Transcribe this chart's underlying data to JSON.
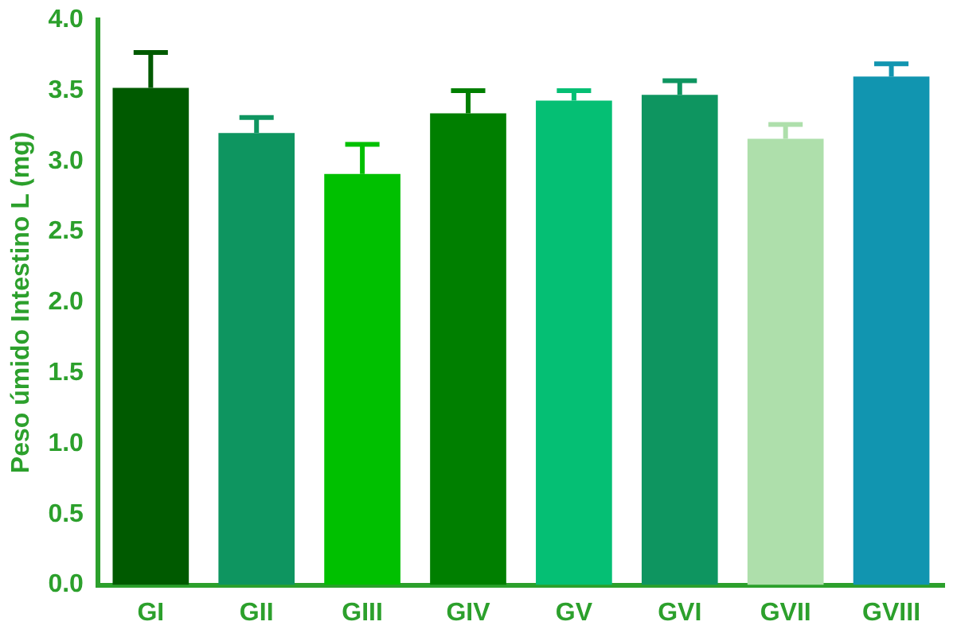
{
  "chart_data": {
    "type": "bar",
    "ylabel": "Peso úmido Intestino L (mg)",
    "categories": [
      "GI",
      "GII",
      "GIII",
      "GIV",
      "GV",
      "GVI",
      "GVII",
      "GVIII"
    ],
    "values": [
      3.52,
      3.2,
      2.91,
      3.34,
      3.43,
      3.47,
      3.16,
      3.6
    ],
    "errors": [
      [
        3.52,
        3.77
      ],
      [
        3.2,
        3.31
      ],
      [
        2.91,
        3.12
      ],
      [
        3.34,
        3.5
      ],
      [
        3.43,
        3.5
      ],
      [
        3.47,
        3.57
      ],
      [
        3.16,
        3.26
      ],
      [
        3.6,
        3.69
      ]
    ],
    "colors": [
      "#005a00",
      "#0e9560",
      "#00c000",
      "#007f00",
      "#05bf74",
      "#0e9560",
      "#aedfab",
      "#1195b0"
    ],
    "ylim": [
      0,
      4
    ],
    "yticks": [
      {
        "value": 0,
        "label": "0.0"
      },
      {
        "value": 0.5,
        "label": "0.5"
      },
      {
        "value": 1,
        "label": "1.0"
      },
      {
        "value": 1.5,
        "label": "1.5"
      },
      {
        "value": 2,
        "label": "2.0"
      },
      {
        "value": 2.5,
        "label": "2.5"
      },
      {
        "value": 3,
        "label": "3.0"
      },
      {
        "value": 3.5,
        "label": "3.5"
      },
      {
        "value": 4,
        "label": "4.0"
      }
    ],
    "grid": false,
    "legend": false
  }
}
